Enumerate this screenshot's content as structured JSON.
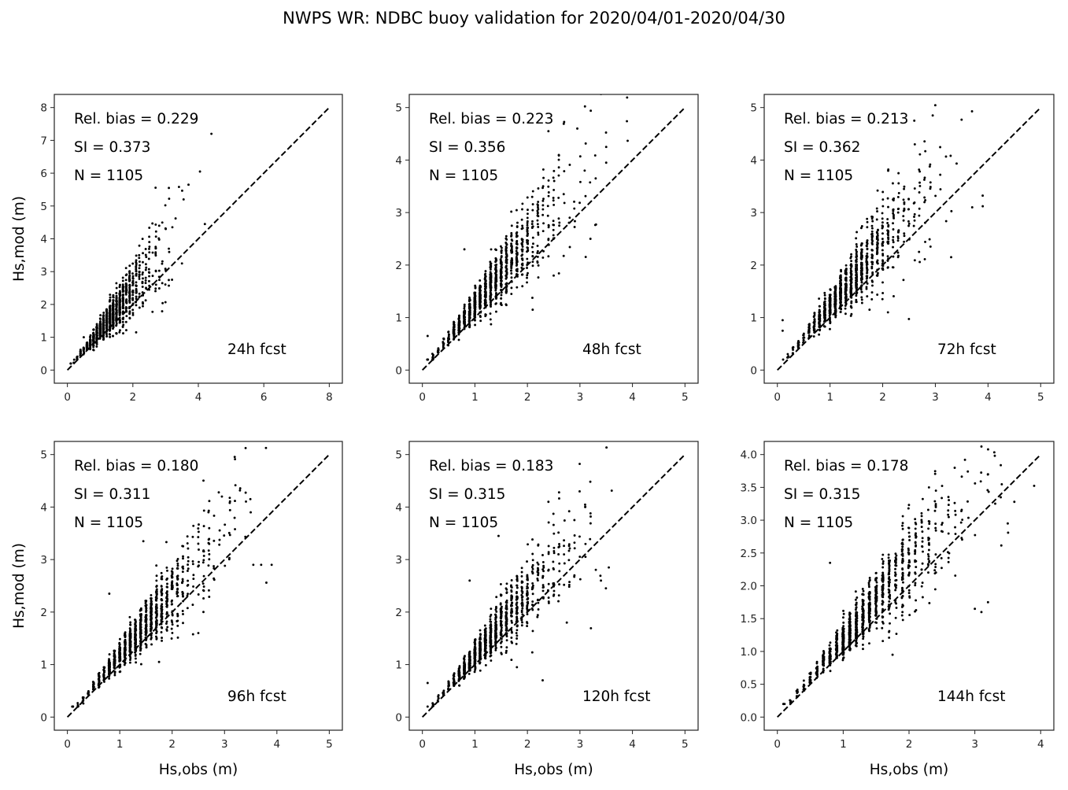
{
  "figure_title": "NWPS WR: NDBC buoy validation for 2020/04/01-2020/04/30",
  "colors": {
    "points": "#000000",
    "axes": "#222222",
    "reference_line": "#000000"
  },
  "chart_data": [
    {
      "type": "scatter",
      "panel": "24h fcst",
      "xlabel": "",
      "ylabel": "Hs,mod (m)",
      "xlim": [
        -0.4,
        8.4
      ],
      "ylim": [
        -0.4,
        8.4
      ],
      "xticks": [
        "0",
        "2",
        "4",
        "6",
        "8"
      ],
      "xtick_values": [
        0,
        2,
        4,
        6,
        8
      ],
      "yticks": [
        "0",
        "1",
        "2",
        "3",
        "4",
        "5",
        "6",
        "7",
        "8"
      ],
      "ytick_values": [
        0,
        1,
        2,
        3,
        4,
        5,
        6,
        7,
        8
      ],
      "reference_line": "y = x (dashed)",
      "stats": {
        "rel_bias_label": "Rel. bias =  0.229",
        "si_label": "SI =  0.373",
        "n_label": "N = 1105",
        "rel_bias": 0.229,
        "si": 0.373,
        "n": 1105
      },
      "forecast_label": "24h fcst",
      "outliers": [
        [
          4.4,
          7.2
        ],
        [
          4.05,
          6.05
        ],
        [
          3.7,
          5.65
        ],
        [
          3.1,
          5.55
        ],
        [
          3.55,
          5.2
        ],
        [
          4.2,
          4.45
        ],
        [
          3.5,
          3.25
        ],
        [
          0.5,
          1.0
        ],
        [
          2.1,
          1.15
        ]
      ]
    },
    {
      "type": "scatter",
      "panel": "48h fcst",
      "xlabel": "",
      "ylabel": "",
      "xlim": [
        -0.25,
        5.25
      ],
      "ylim": [
        -0.25,
        5.25
      ],
      "xticks": [
        "0",
        "1",
        "2",
        "3",
        "4",
        "5"
      ],
      "xtick_values": [
        0,
        1,
        2,
        3,
        4,
        5
      ],
      "yticks": [
        "0",
        "1",
        "2",
        "3",
        "4",
        "5"
      ],
      "ytick_values": [
        0,
        1,
        2,
        3,
        4,
        5
      ],
      "reference_line": "y = x (dashed)",
      "stats": {
        "rel_bias_label": "Rel. bias =  0.223",
        "si_label": "SI =  0.356",
        "n_label": "N = 1105",
        "rel_bias": 0.223,
        "si": 0.356,
        "n": 1105
      },
      "forecast_label": "48h fcst",
      "outliers": [
        [
          2.95,
          4.6
        ],
        [
          2.4,
          4.55
        ],
        [
          3.5,
          4.25
        ],
        [
          3.5,
          3.95
        ],
        [
          3.3,
          3.65
        ],
        [
          3.2,
          2.5
        ],
        [
          2.5,
          1.8
        ],
        [
          2.1,
          1.15
        ],
        [
          0.8,
          2.3
        ],
        [
          0.1,
          0.65
        ]
      ]
    },
    {
      "type": "scatter",
      "panel": "72h fcst",
      "xlabel": "",
      "ylabel": "",
      "xlim": [
        -0.25,
        5.25
      ],
      "ylim": [
        -0.25,
        5.25
      ],
      "xticks": [
        "0",
        "1",
        "2",
        "3",
        "4",
        "5"
      ],
      "xtick_values": [
        0,
        1,
        2,
        3,
        4,
        5
      ],
      "yticks": [
        "0",
        "1",
        "2",
        "3",
        "4",
        "5"
      ],
      "ytick_values": [
        0,
        1,
        2,
        3,
        4,
        5
      ],
      "reference_line": "y = x (dashed)",
      "stats": {
        "rel_bias_label": "Rel. bias =  0.213",
        "si_label": "SI =  0.362",
        "n_label": "N = 1105",
        "rel_bias": 0.213,
        "si": 0.362,
        "n": 1105
      },
      "forecast_label": "72h fcst",
      "outliers": [
        [
          2.95,
          4.85
        ],
        [
          2.6,
          4.75
        ],
        [
          3.7,
          3.1
        ],
        [
          3.9,
          3.12
        ],
        [
          3.3,
          2.15
        ],
        [
          2.1,
          1.1
        ],
        [
          1.75,
          1.15
        ],
        [
          0.1,
          0.95
        ],
        [
          0.1,
          0.75
        ]
      ]
    },
    {
      "type": "scatter",
      "panel": "96h fcst",
      "xlabel": "Hs,obs (m)",
      "ylabel": "Hs,mod (m)",
      "xlim": [
        -0.25,
        5.25
      ],
      "ylim": [
        -0.25,
        5.25
      ],
      "xticks": [
        "0",
        "1",
        "2",
        "3",
        "4",
        "5"
      ],
      "xtick_values": [
        0,
        1,
        2,
        3,
        4,
        5
      ],
      "yticks": [
        "0",
        "1",
        "2",
        "3",
        "4",
        "5"
      ],
      "ytick_values": [
        0,
        1,
        2,
        3,
        4,
        5
      ],
      "reference_line": "y = x (dashed)",
      "stats": {
        "rel_bias_label": "Rel. bias =  0.180",
        "si_label": "SI =  0.311",
        "n_label": "N = 1105",
        "rel_bias": 0.18,
        "si": 0.311,
        "n": 1105
      },
      "forecast_label": "96h fcst",
      "outliers": [
        [
          2.95,
          4.2
        ],
        [
          3.1,
          4.08
        ],
        [
          3.5,
          3.9
        ],
        [
          3.55,
          2.9
        ],
        [
          3.7,
          2.9
        ],
        [
          3.9,
          2.9
        ],
        [
          1.45,
          3.35
        ],
        [
          0.8,
          2.35
        ],
        [
          2.5,
          1.6
        ],
        [
          1.75,
          1.05
        ]
      ]
    },
    {
      "type": "scatter",
      "panel": "120h fcst",
      "xlabel": "Hs,obs (m)",
      "ylabel": "",
      "xlim": [
        -0.25,
        5.25
      ],
      "ylim": [
        -0.25,
        5.25
      ],
      "xticks": [
        "0",
        "1",
        "2",
        "3",
        "4",
        "5"
      ],
      "xtick_values": [
        0,
        1,
        2,
        3,
        4,
        5
      ],
      "yticks": [
        "0",
        "1",
        "2",
        "3",
        "4",
        "5"
      ],
      "ytick_values": [
        0,
        1,
        2,
        3,
        4,
        5
      ],
      "reference_line": "y = x (dashed)",
      "stats": {
        "rel_bias_label": "Rel. bias =  0.183",
        "si_label": "SI =  0.315",
        "n_label": "N = 1105",
        "rel_bias": 0.183,
        "si": 0.315,
        "n": 1105
      },
      "forecast_label": "120h fcst",
      "outliers": [
        [
          2.4,
          4.1
        ],
        [
          3.1,
          4.0
        ],
        [
          1.45,
          3.45
        ],
        [
          3.55,
          2.85
        ],
        [
          3.4,
          2.6
        ],
        [
          2.75,
          1.8
        ],
        [
          1.8,
          0.95
        ],
        [
          0.9,
          2.6
        ],
        [
          0.1,
          0.65
        ]
      ]
    },
    {
      "type": "scatter",
      "panel": "144h fcst",
      "xlabel": "Hs,obs (m)",
      "ylabel": "",
      "xlim": [
        -0.2,
        4.2
      ],
      "ylim": [
        -0.2,
        4.2
      ],
      "xticks": [
        "0",
        "1",
        "2",
        "3",
        "4"
      ],
      "xtick_values": [
        0,
        1,
        2,
        3,
        4
      ],
      "yticks": [
        "0.0",
        "0.5",
        "1.0",
        "1.5",
        "2.0",
        "2.5",
        "3.0",
        "3.5",
        "4.0"
      ],
      "ytick_values": [
        0,
        0.5,
        1,
        1.5,
        2,
        2.5,
        3,
        3.5,
        4
      ],
      "reference_line": "y = x (dashed)",
      "stats": {
        "rel_bias_label": "Rel. bias =  0.178",
        "si_label": "SI =  0.315",
        "n_label": "N = 1105",
        "rel_bias": 0.178,
        "si": 0.315,
        "n": 1105
      },
      "forecast_label": "144h fcst",
      "outliers": [
        [
          2.85,
          3.92
        ],
        [
          3.2,
          3.7
        ],
        [
          3.6,
          3.28
        ],
        [
          3.5,
          2.95
        ],
        [
          3.0,
          1.65
        ],
        [
          3.1,
          1.6
        ],
        [
          3.2,
          1.75
        ],
        [
          1.75,
          0.95
        ],
        [
          0.8,
          2.35
        ]
      ]
    }
  ]
}
